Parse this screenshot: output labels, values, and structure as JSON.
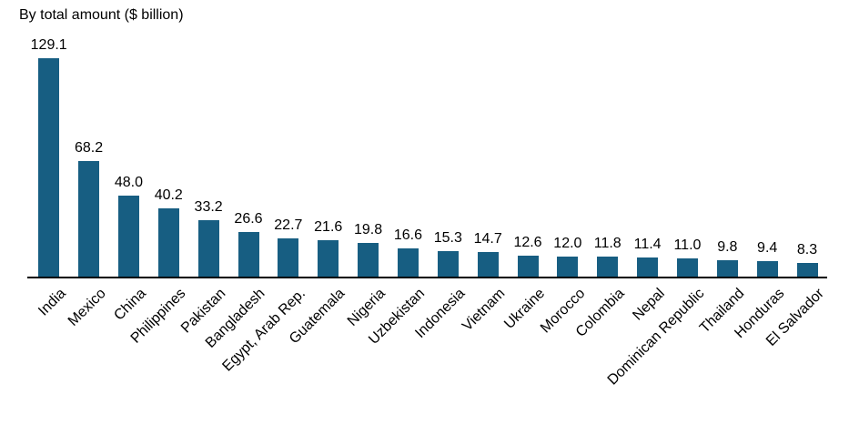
{
  "chart_data": {
    "type": "bar",
    "title": "By total amount ($ billion)",
    "categories": [
      "India",
      "Mexico",
      "China",
      "Philippines",
      "Pakistan",
      "Bangladesh",
      "Egypt, Arab Rep.",
      "Guatemala",
      "Nigeria",
      "Uzbekistan",
      "Indonesia",
      "Vietnam",
      "Ukraine",
      "Morocco",
      "Colombia",
      "Nepal",
      "Dominican Republic",
      "Thailand",
      "Honduras",
      "El Salvador"
    ],
    "values": [
      129.1,
      68.2,
      48.0,
      40.2,
      33.2,
      26.6,
      22.7,
      21.6,
      19.8,
      16.6,
      15.3,
      14.7,
      12.6,
      12.0,
      11.8,
      11.4,
      11.0,
      9.8,
      9.4,
      8.3
    ],
    "value_labels": [
      "129.1",
      "68.2",
      "48.0",
      "40.2",
      "33.2",
      "26.6",
      "22.7",
      "21.6",
      "19.8",
      "16.6",
      "15.3",
      "14.7",
      "12.6",
      "12.0",
      "11.8",
      "11.4",
      "11.0",
      "9.8",
      "9.4",
      "8.3"
    ],
    "bar_color": "#175e82",
    "axis_color": "#000000",
    "text_color": "#000000",
    "xlabel": "",
    "ylabel": "",
    "ylim": [
      0,
      135
    ],
    "grid": false,
    "legend_position": "none"
  }
}
